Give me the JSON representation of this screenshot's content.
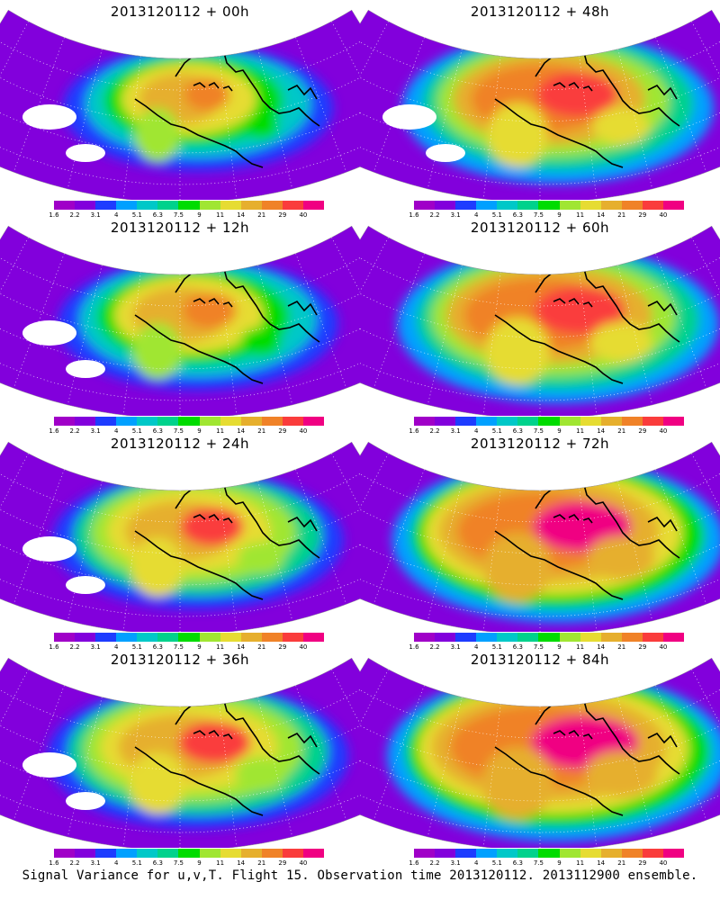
{
  "caption": "Signal Variance for u,v,T. Flight 15. Observation time 2013120112. 2013112900 ensemble.",
  "colorbar": {
    "labels": [
      "1.6",
      "2.2",
      "3.1",
      "4",
      "5.1",
      "6.3",
      "7.5",
      "9",
      "11",
      "14",
      "21",
      "29",
      "40"
    ],
    "colors": [
      "#a000c8",
      "#8200dc",
      "#1e3cff",
      "#00a0ff",
      "#00c8c8",
      "#00d28c",
      "#00dc00",
      "#a0e632",
      "#e6dc32",
      "#e6af2d",
      "#f08228",
      "#fa3c3c",
      "#f00082"
    ]
  },
  "panels": [
    {
      "title": "2013120112 + 00h",
      "lead_hours": 0
    },
    {
      "title": "2013120112 + 48h",
      "lead_hours": 48
    },
    {
      "title": "2013120112 + 12h",
      "lead_hours": 12
    },
    {
      "title": "2013120112 + 60h",
      "lead_hours": 60
    },
    {
      "title": "2013120112 + 24h",
      "lead_hours": 24
    },
    {
      "title": "2013120112 + 72h",
      "lead_hours": 72
    },
    {
      "title": "2013120112 + 36h",
      "lead_hours": 36
    },
    {
      "title": "2013120112 + 84h",
      "lead_hours": 84
    }
  ]
}
